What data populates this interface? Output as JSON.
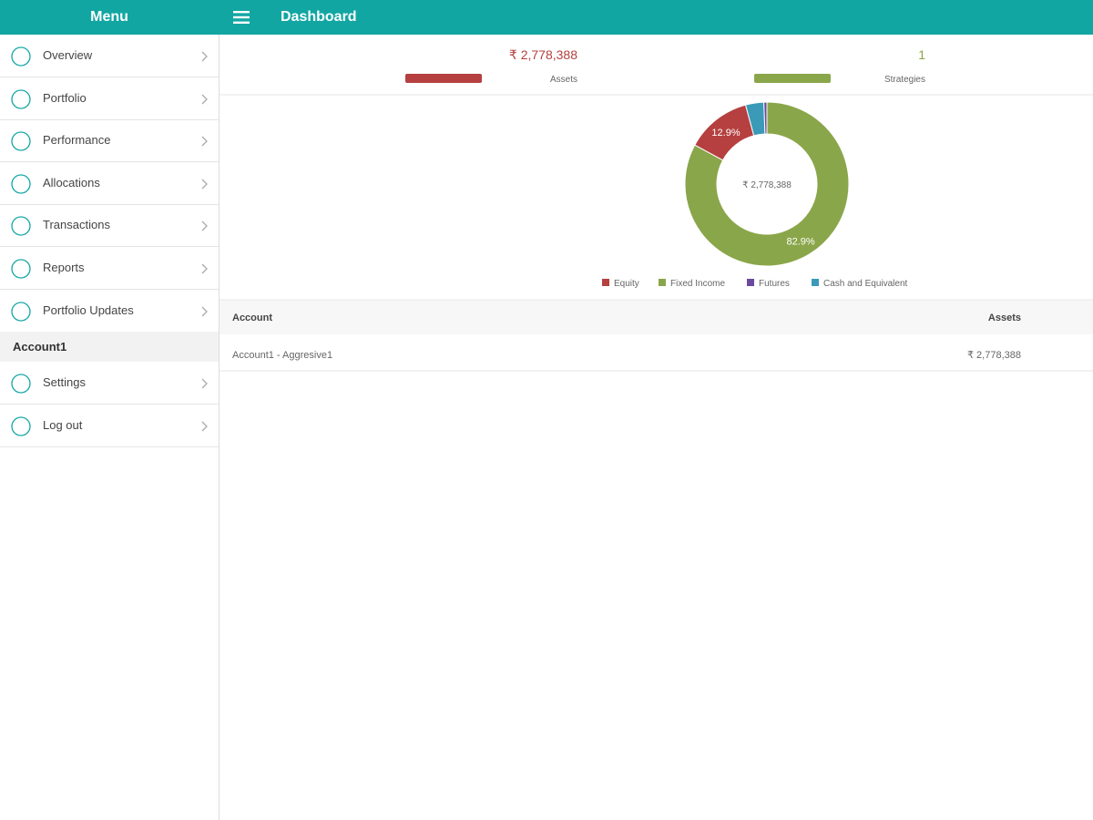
{
  "menu": {
    "title": "Menu",
    "items": [
      "Overview",
      "Portfolio",
      "Performance",
      "Allocations",
      "Transactions",
      "Reports",
      "Portfolio Updates"
    ],
    "section": "Account1",
    "account_items": [
      "Settings",
      "Log out"
    ]
  },
  "header": {
    "title": "Dashboard"
  },
  "summary": [
    {
      "value": "₹ 2,778,388",
      "label": "Assets",
      "color": "#b5403f"
    },
    {
      "value": "1",
      "label": "Strategies",
      "color": "#8aa64a"
    }
  ],
  "chart_data": {
    "type": "pie",
    "donut": true,
    "center_label": "₹ 2,778,388",
    "categories": [
      "Equity",
      "Fixed Income",
      "Futures",
      "Cash and Equivalent"
    ],
    "values": [
      12.9,
      82.9,
      0.6,
      3.6
    ],
    "value_labels": [
      "12.9%",
      "82.9%",
      null,
      null
    ],
    "colors": [
      "#b5403f",
      "#8aa64a",
      "#6a4a9c",
      "#3a9ab8"
    ]
  },
  "table": {
    "columns": [
      "Account",
      "Assets"
    ],
    "rows": [
      [
        "Account1 - Aggresive1",
        "₹ 2,778,388"
      ]
    ]
  }
}
